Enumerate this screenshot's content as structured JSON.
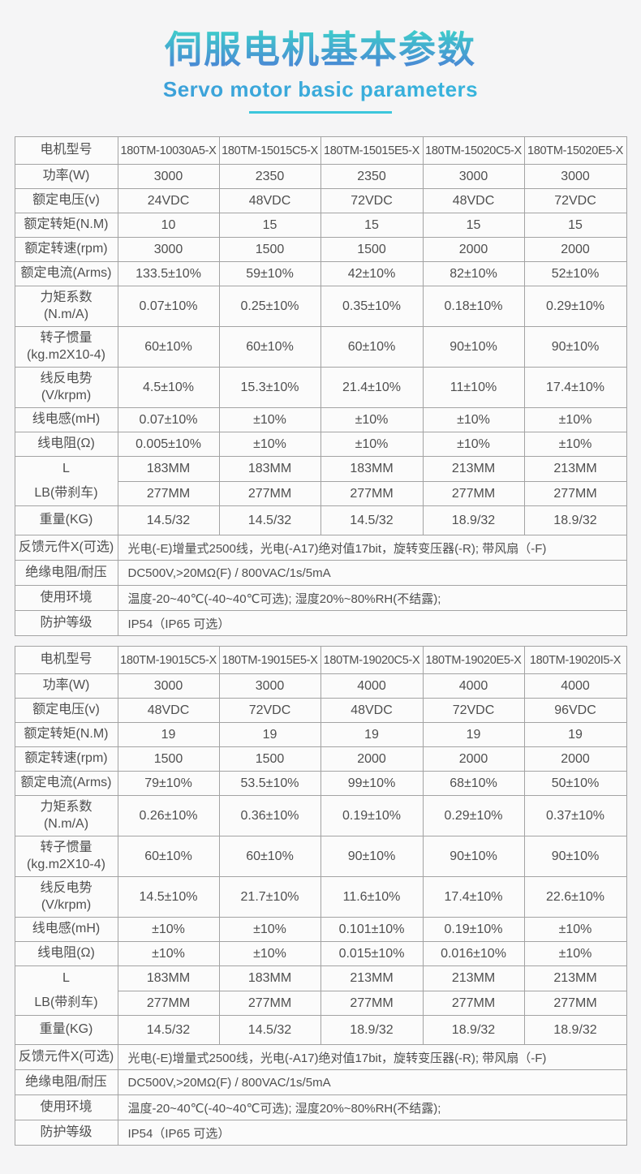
{
  "header": {
    "title": "伺服电机基本参数",
    "subtitle": "Servo motor basic parameters"
  },
  "colors": {
    "title_gradient_top": "#3ed0ca",
    "title_gradient_bottom": "#4b7ed6",
    "subtitle_blue": "#3f97d8",
    "underline_teal": "#3cc6dc",
    "table_border": "#a3a3a3",
    "cell_background": "#fbfbfb",
    "page_background": "#f5f5f6",
    "text": "#4f4f4f"
  },
  "tables": [
    {
      "rows": [
        {
          "kind": "model",
          "label": "电机型号",
          "values": [
            "180TM-10030A5-X",
            "180TM-15015C5-X",
            "180TM-15015E5-X",
            "180TM-15020C5-X",
            "180TM-15020E5-X"
          ]
        },
        {
          "kind": "single",
          "label": "功率(W)",
          "values": [
            "3000",
            "2350",
            "2350",
            "3000",
            "3000"
          ]
        },
        {
          "kind": "single",
          "label": "额定电压(v)",
          "values": [
            "24VDC",
            "48VDC",
            "72VDC",
            "48VDC",
            "72VDC"
          ]
        },
        {
          "kind": "single",
          "label": "额定转矩(N.M)",
          "values": [
            "10",
            "15",
            "15",
            "15",
            "15"
          ]
        },
        {
          "kind": "single",
          "label": "额定转速(rpm)",
          "values": [
            "3000",
            "1500",
            "1500",
            "2000",
            "2000"
          ]
        },
        {
          "kind": "single",
          "label": "额定电流(Arms)",
          "values": [
            "133.5±10%",
            "59±10%",
            "42±10%",
            "82±10%",
            "52±10%"
          ]
        },
        {
          "kind": "tall",
          "label": "力矩系数\n(N.m/A)",
          "values": [
            "0.07±10%",
            "0.25±10%",
            "0.35±10%",
            "0.18±10%",
            "0.29±10%"
          ]
        },
        {
          "kind": "tall",
          "label": "转子惯量\n(kg.m2X10-4)",
          "values": [
            "60±10%",
            "60±10%",
            "60±10%",
            "90±10%",
            "90±10%"
          ]
        },
        {
          "kind": "tall",
          "label": "线反电势\n(V/krpm)",
          "values": [
            "4.5±10%",
            "15.3±10%",
            "21.4±10%",
            "11±10%",
            "17.4±10%"
          ]
        },
        {
          "kind": "single",
          "label": "线电感(mH)",
          "values": [
            "0.07±10%",
            "±10%",
            "±10%",
            "±10%",
            "±10%"
          ]
        },
        {
          "kind": "single",
          "label": "线电阻(Ω)",
          "values": [
            "0.005±10%",
            "±10%",
            "±10%",
            "±10%",
            "±10%"
          ]
        },
        {
          "kind": "pair",
          "labels": [
            "L",
            "LB(带刹车)"
          ],
          "values_top": [
            "183MM",
            "183MM",
            "183MM",
            "213MM",
            "213MM"
          ],
          "values_bottom": [
            "277MM",
            "277MM",
            "277MM",
            "277MM",
            "277MM"
          ]
        },
        {
          "kind": "weight",
          "label": "重量(KG)",
          "values": [
            "14.5/32",
            "14.5/32",
            "14.5/32",
            "18.9/32",
            "18.9/32"
          ]
        },
        {
          "kind": "full",
          "label": "反馈元件X(可选)",
          "value": "光电(-E)增量式2500线，光电(-A17)绝对值17bit，旋转变压器(-R); 带风扇（-F)"
        },
        {
          "kind": "full",
          "label": "绝缘电阻/耐压",
          "value": "DC500V,>20MΩ(F) / 800VAC/1s/5mA"
        },
        {
          "kind": "full",
          "label": "使用环境",
          "value": "温度-20~40℃(-40~40℃可选); 湿度20%~80%RH(不结露);"
        },
        {
          "kind": "full",
          "label": "防护等级",
          "value": "IP54（IP65 可选）"
        }
      ]
    },
    {
      "rows": [
        {
          "kind": "model",
          "label": "电机型号",
          "values": [
            "180TM-19015C5-X",
            "180TM-19015E5-X",
            "180TM-19020C5-X",
            "180TM-19020E5-X",
            "180TM-19020I5-X"
          ]
        },
        {
          "kind": "single",
          "label": "功率(W)",
          "values": [
            "3000",
            "3000",
            "4000",
            "4000",
            "4000"
          ]
        },
        {
          "kind": "single",
          "label": "额定电压(v)",
          "values": [
            "48VDC",
            "72VDC",
            "48VDC",
            "72VDC",
            "96VDC"
          ]
        },
        {
          "kind": "single",
          "label": "额定转矩(N.M)",
          "values": [
            "19",
            "19",
            "19",
            "19",
            "19"
          ]
        },
        {
          "kind": "single",
          "label": "额定转速(rpm)",
          "values": [
            "1500",
            "1500",
            "2000",
            "2000",
            "2000"
          ]
        },
        {
          "kind": "single",
          "label": "额定电流(Arms)",
          "values": [
            "79±10%",
            "53.5±10%",
            "99±10%",
            "68±10%",
            "50±10%"
          ]
        },
        {
          "kind": "tall",
          "label": "力矩系数\n(N.m/A)",
          "values": [
            "0.26±10%",
            "0.36±10%",
            "0.19±10%",
            "0.29±10%",
            "0.37±10%"
          ]
        },
        {
          "kind": "tall",
          "label": "转子惯量\n(kg.m2X10-4)",
          "values": [
            "60±10%",
            "60±10%",
            "90±10%",
            "90±10%",
            "90±10%"
          ]
        },
        {
          "kind": "tall",
          "label": "线反电势\n(V/krpm)",
          "values": [
            "14.5±10%",
            "21.7±10%",
            "11.6±10%",
            "17.4±10%",
            "22.6±10%"
          ]
        },
        {
          "kind": "single",
          "label": "线电感(mH)",
          "values": [
            "±10%",
            "±10%",
            "0.101±10%",
            "0.19±10%",
            "±10%"
          ]
        },
        {
          "kind": "single",
          "label": "线电阻(Ω)",
          "values": [
            "±10%",
            "±10%",
            "0.015±10%",
            "0.016±10%",
            "±10%"
          ]
        },
        {
          "kind": "pair",
          "labels": [
            "L",
            "LB(带刹车)"
          ],
          "values_top": [
            "183MM",
            "183MM",
            "213MM",
            "213MM",
            "213MM"
          ],
          "values_bottom": [
            "277MM",
            "277MM",
            "277MM",
            "277MM",
            "277MM"
          ]
        },
        {
          "kind": "weight",
          "label": "重量(KG)",
          "values": [
            "14.5/32",
            "14.5/32",
            "18.9/32",
            "18.9/32",
            "18.9/32"
          ]
        },
        {
          "kind": "full",
          "label": "反馈元件X(可选)",
          "value": "光电(-E)增量式2500线，光电(-A17)绝对值17bit，旋转变压器(-R); 带风扇（-F)"
        },
        {
          "kind": "full",
          "label": "绝缘电阻/耐压",
          "value": "DC500V,>20MΩ(F) / 800VAC/1s/5mA"
        },
        {
          "kind": "full",
          "label": "使用环境",
          "value": "温度-20~40℃(-40~40℃可选); 湿度20%~80%RH(不结露);"
        },
        {
          "kind": "full",
          "label": "防护等级",
          "value": "IP54（IP65 可选）"
        }
      ]
    }
  ]
}
